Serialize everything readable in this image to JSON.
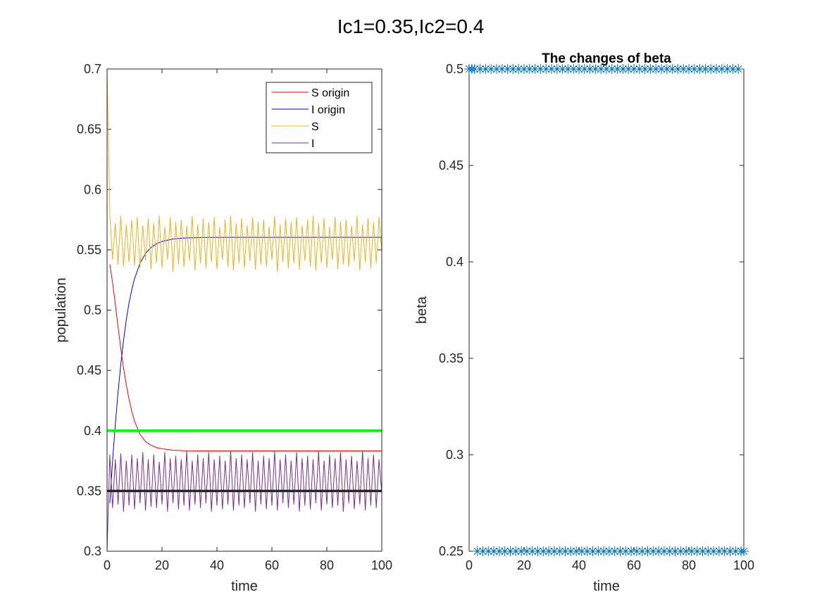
{
  "figure_title": "Ic1=0.35,Ic2=0.4",
  "chart_data": [
    {
      "type": "line",
      "title": "",
      "xlabel": "time",
      "ylabel": "population",
      "xlim": [
        0,
        100
      ],
      "ylim": [
        0.3,
        0.7
      ],
      "xticks": [
        "0",
        "20",
        "40",
        "60",
        "80",
        "100"
      ],
      "yticks": [
        "0.3",
        "0.35",
        "0.4",
        "0.45",
        "0.5",
        "0.55",
        "0.6",
        "0.65",
        "0.7"
      ],
      "grid": false,
      "legend_position": "top-right",
      "series": [
        {
          "name": "S origin",
          "color": "#ff0000",
          "x": [
            1,
            2,
            3,
            4,
            5,
            6,
            7,
            8,
            9,
            10,
            12,
            14,
            16,
            18,
            20,
            24,
            28,
            35,
            45,
            60,
            80,
            100
          ],
          "y": [
            0.538,
            0.523,
            0.505,
            0.486,
            0.468,
            0.452,
            0.438,
            0.426,
            0.416,
            0.408,
            0.397,
            0.391,
            0.388,
            0.386,
            0.385,
            0.3838,
            0.3834,
            0.3832,
            0.3832,
            0.3832,
            0.3832,
            0.3832
          ]
        },
        {
          "name": "I origin",
          "color": "#0000ff",
          "x": [
            1,
            2,
            3,
            4,
            5,
            6,
            7,
            8,
            9,
            10,
            12,
            14,
            16,
            18,
            20,
            24,
            28,
            35,
            45,
            60,
            80,
            100
          ],
          "y": [
            0.34,
            0.375,
            0.405,
            0.432,
            0.455,
            0.475,
            0.492,
            0.506,
            0.517,
            0.526,
            0.539,
            0.547,
            0.552,
            0.555,
            0.557,
            0.559,
            0.5598,
            0.5603,
            0.5604,
            0.5604,
            0.5604,
            0.5604
          ]
        },
        {
          "name": "S",
          "color": "#edb120",
          "x": [
            0,
            1,
            2,
            3,
            4,
            5,
            6,
            7,
            8,
            9,
            10,
            11,
            12,
            13,
            14,
            15,
            16,
            17,
            18,
            19,
            20,
            21,
            22,
            23,
            24,
            25,
            26,
            27,
            28,
            29,
            30,
            31,
            32,
            33,
            34,
            35,
            36,
            37,
            38,
            39,
            40,
            41,
            42,
            43,
            44,
            45,
            46,
            47,
            48,
            49,
            50,
            51,
            52,
            53,
            54,
            55,
            56,
            57,
            58,
            59,
            60,
            61,
            62,
            63,
            64,
            65,
            66,
            67,
            68,
            69,
            70,
            71,
            72,
            73,
            74,
            75,
            76,
            77,
            78,
            79,
            80,
            81,
            82,
            83,
            84,
            85,
            86,
            87,
            88,
            89,
            90,
            91,
            92,
            93,
            94,
            95,
            96,
            97,
            98,
            99,
            100
          ],
          "y": [
            0.7,
            0.58,
            0.542,
            0.572,
            0.538,
            0.578,
            0.536,
            0.571,
            0.54,
            0.575,
            0.537,
            0.577,
            0.535,
            0.57,
            0.541,
            0.576,
            0.534,
            0.572,
            0.539,
            0.578,
            0.535,
            0.569,
            0.542,
            0.577,
            0.532,
            0.573,
            0.538,
            0.575,
            0.536,
            0.57,
            0.541,
            0.578,
            0.533,
            0.571,
            0.539,
            0.576,
            0.535,
            0.573,
            0.54,
            0.577,
            0.534,
            0.569,
            0.542,
            0.575,
            0.536,
            0.578,
            0.533,
            0.572,
            0.539,
            0.576,
            0.535,
            0.57,
            0.541,
            0.577,
            0.534,
            0.573,
            0.538,
            0.575,
            0.536,
            0.569,
            0.542,
            0.578,
            0.532,
            0.571,
            0.54,
            0.576,
            0.535,
            0.573,
            0.539,
            0.577,
            0.534,
            0.57,
            0.541,
            0.575,
            0.536,
            0.578,
            0.533,
            0.572,
            0.539,
            0.576,
            0.535,
            0.569,
            0.542,
            0.577,
            0.534,
            0.573,
            0.538,
            0.575,
            0.536,
            0.57,
            0.541,
            0.578,
            0.533,
            0.571,
            0.54,
            0.576,
            0.535,
            0.573,
            0.539,
            0.577,
            0.548
          ]
        },
        {
          "name": "I",
          "color": "#7e2f8e",
          "x": [
            0,
            1,
            2,
            3,
            4,
            5,
            6,
            7,
            8,
            9,
            10,
            11,
            12,
            13,
            14,
            15,
            16,
            17,
            18,
            19,
            20,
            21,
            22,
            23,
            24,
            25,
            26,
            27,
            28,
            29,
            30,
            31,
            32,
            33,
            34,
            35,
            36,
            37,
            38,
            39,
            40,
            41,
            42,
            43,
            44,
            45,
            46,
            47,
            48,
            49,
            50,
            51,
            52,
            53,
            54,
            55,
            56,
            57,
            58,
            59,
            60,
            61,
            62,
            63,
            64,
            65,
            66,
            67,
            68,
            69,
            70,
            71,
            72,
            73,
            74,
            75,
            76,
            77,
            78,
            79,
            80,
            81,
            82,
            83,
            84,
            85,
            86,
            87,
            88,
            89,
            90,
            91,
            92,
            93,
            94,
            95,
            96,
            97,
            98,
            99,
            100
          ],
          "y": [
            0.3,
            0.38,
            0.336,
            0.376,
            0.339,
            0.381,
            0.333,
            0.375,
            0.338,
            0.38,
            0.335,
            0.377,
            0.34,
            0.382,
            0.334,
            0.376,
            0.337,
            0.38,
            0.336,
            0.374,
            0.339,
            0.382,
            0.333,
            0.377,
            0.34,
            0.379,
            0.335,
            0.376,
            0.338,
            0.383,
            0.334,
            0.375,
            0.339,
            0.38,
            0.336,
            0.377,
            0.34,
            0.382,
            0.333,
            0.376,
            0.338,
            0.379,
            0.335,
            0.375,
            0.339,
            0.383,
            0.334,
            0.377,
            0.338,
            0.38,
            0.336,
            0.376,
            0.34,
            0.382,
            0.333,
            0.375,
            0.339,
            0.379,
            0.335,
            0.377,
            0.338,
            0.383,
            0.334,
            0.376,
            0.34,
            0.38,
            0.336,
            0.375,
            0.339,
            0.382,
            0.333,
            0.377,
            0.338,
            0.379,
            0.335,
            0.376,
            0.34,
            0.383,
            0.334,
            0.375,
            0.339,
            0.38,
            0.336,
            0.377,
            0.338,
            0.382,
            0.333,
            0.376,
            0.34,
            0.379,
            0.335,
            0.375,
            0.339,
            0.383,
            0.334,
            0.377,
            0.338,
            0.38,
            0.336,
            0.376,
            0.348
          ]
        }
      ],
      "reference_lines": [
        {
          "y": 0.4,
          "color": "#00ff00"
        },
        {
          "y": 0.35,
          "color": "#262626"
        }
      ]
    },
    {
      "type": "scatter",
      "title": "The changes of beta",
      "xlabel": "time",
      "ylabel": "beta",
      "xlim": [
        0,
        100
      ],
      "ylim": [
        0.25,
        0.5
      ],
      "xticks": [
        "0",
        "20",
        "40",
        "60",
        "80",
        "100"
      ],
      "yticks": [
        "0.25",
        "0.3",
        "0.35",
        "0.4",
        "0.45",
        "0.5"
      ],
      "grid": false,
      "marker": "asterisk",
      "marker_color": "#0072bd",
      "series": [
        {
          "x": [
            0,
            1,
            2,
            3,
            4,
            5,
            6,
            7,
            8,
            9,
            10,
            11,
            12,
            13,
            14,
            15,
            16,
            17,
            18,
            19,
            20,
            21,
            22,
            23,
            24,
            25,
            26,
            27,
            28,
            29,
            30,
            31,
            32,
            33,
            34,
            35,
            36,
            37,
            38,
            39,
            40,
            41,
            42,
            43,
            44,
            45,
            46,
            47,
            48,
            49,
            50,
            51,
            52,
            53,
            54,
            55,
            56,
            57,
            58,
            59,
            60,
            61,
            62,
            63,
            64,
            65,
            66,
            67,
            68,
            69,
            70,
            71,
            72,
            73,
            74,
            75,
            76,
            77,
            78,
            79,
            80,
            81,
            82,
            83,
            84,
            85,
            86,
            87,
            88,
            89,
            90,
            91,
            92,
            93,
            94,
            95,
            96,
            97,
            98,
            99,
            100
          ],
          "y": [
            0.5,
            0.5,
            0.5,
            0.25,
            0.5,
            0.25,
            0.5,
            0.25,
            0.5,
            0.25,
            0.5,
            0.25,
            0.5,
            0.25,
            0.5,
            0.25,
            0.5,
            0.25,
            0.5,
            0.25,
            0.5,
            0.25,
            0.5,
            0.25,
            0.5,
            0.25,
            0.5,
            0.25,
            0.5,
            0.25,
            0.5,
            0.25,
            0.5,
            0.25,
            0.5,
            0.25,
            0.5,
            0.25,
            0.5,
            0.25,
            0.5,
            0.25,
            0.5,
            0.25,
            0.5,
            0.25,
            0.5,
            0.25,
            0.5,
            0.25,
            0.5,
            0.25,
            0.5,
            0.25,
            0.5,
            0.25,
            0.5,
            0.25,
            0.5,
            0.25,
            0.5,
            0.25,
            0.5,
            0.25,
            0.5,
            0.25,
            0.5,
            0.25,
            0.5,
            0.25,
            0.5,
            0.25,
            0.5,
            0.25,
            0.5,
            0.25,
            0.5,
            0.25,
            0.5,
            0.25,
            0.5,
            0.25,
            0.5,
            0.25,
            0.5,
            0.25,
            0.5,
            0.25,
            0.5,
            0.25,
            0.5,
            0.25,
            0.5,
            0.25,
            0.5,
            0.25,
            0.5,
            0.25,
            0.5,
            0.25,
            0.25
          ]
        }
      ]
    }
  ]
}
